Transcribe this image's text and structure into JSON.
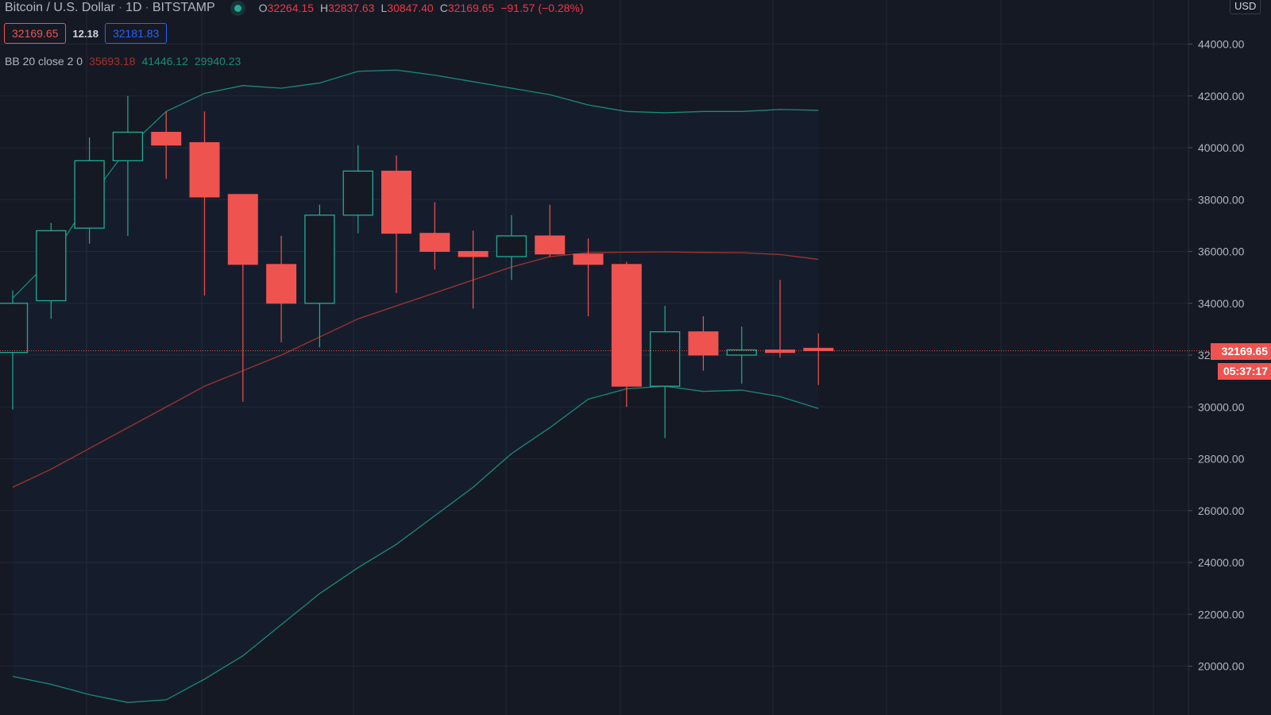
{
  "header": {
    "symbol": "Bitcoin / U.S. Dollar",
    "interval": "1D",
    "exchange": "BITSTAMP",
    "ohlc": {
      "o_label": "O",
      "o_value": "32264.15",
      "h_label": "H",
      "h_value": "32837.63",
      "l_label": "L",
      "l_value": "30847.40",
      "c_label": "C",
      "c_value": "32169.65",
      "change": "−91.57 (−0.28%)"
    }
  },
  "price_boxes": {
    "bid": "32169.65",
    "spread": "12.18",
    "ask": "32181.83"
  },
  "indicator": {
    "label": "BB 20 close 2 0",
    "basis": "35693.18",
    "upper": "41446.12",
    "lower": "29940.23"
  },
  "axis": {
    "currency_badge": "USD",
    "last_price": "32169.65",
    "countdown": "05:37:17"
  },
  "colors": {
    "background": "#151924",
    "up": "#22ab94",
    "down": "#ef5350",
    "basis": "#a0342f",
    "band": "#1b8a79",
    "grid": "#222633"
  },
  "chart_data": {
    "type": "candlestick",
    "ylim": [
      18000,
      45500
    ],
    "y_ticks": [
      "20000.00",
      "22000.00",
      "24000.00",
      "26000.00",
      "28000.00",
      "30000.00",
      "32000.00",
      "34000.00",
      "36000.00",
      "38000.00",
      "40000.00",
      "42000.00",
      "44000.00"
    ],
    "last_price": 32169.65,
    "candles": [
      {
        "o": 32100,
        "h": 34500,
        "l": 29900,
        "c": 34000
      },
      {
        "o": 34100,
        "h": 37100,
        "l": 33400,
        "c": 36800
      },
      {
        "o": 36900,
        "h": 40400,
        "l": 36300,
        "c": 39500
      },
      {
        "o": 39500,
        "h": 42000,
        "l": 36600,
        "c": 40600
      },
      {
        "o": 40600,
        "h": 41400,
        "l": 38800,
        "c": 40100
      },
      {
        "o": 40200,
        "h": 41400,
        "l": 34300,
        "c": 38100
      },
      {
        "o": 38200,
        "h": 38200,
        "l": 30200,
        "c": 35500
      },
      {
        "o": 35500,
        "h": 36600,
        "l": 32500,
        "c": 34000
      },
      {
        "o": 34000,
        "h": 37800,
        "l": 32300,
        "c": 37400
      },
      {
        "o": 37400,
        "h": 40100,
        "l": 36700,
        "c": 39100
      },
      {
        "o": 39100,
        "h": 39700,
        "l": 34400,
        "c": 36700
      },
      {
        "o": 36700,
        "h": 37900,
        "l": 35300,
        "c": 36000
      },
      {
        "o": 36000,
        "h": 36800,
        "l": 33800,
        "c": 35800
      },
      {
        "o": 35800,
        "h": 37400,
        "l": 34900,
        "c": 36600
      },
      {
        "o": 36600,
        "h": 37800,
        "l": 35800,
        "c": 35900
      },
      {
        "o": 35900,
        "h": 36500,
        "l": 33500,
        "c": 35500
      },
      {
        "o": 35500,
        "h": 35600,
        "l": 30000,
        "c": 30800
      },
      {
        "o": 30800,
        "h": 33900,
        "l": 28800,
        "c": 32900
      },
      {
        "o": 32900,
        "h": 33500,
        "l": 31400,
        "c": 32000
      },
      {
        "o": 32000,
        "h": 33100,
        "l": 30900,
        "c": 32200
      },
      {
        "o": 32200,
        "h": 34900,
        "l": 31900,
        "c": 32100
      },
      {
        "o": 32264.15,
        "h": 32837.63,
        "l": 30847.4,
        "c": 32169.65
      }
    ],
    "bollinger": {
      "upper": [
        34200,
        35700,
        38000,
        40000,
        41400,
        42100,
        42400,
        42300,
        42500,
        42950,
        43000,
        42800,
        42550,
        42300,
        42050,
        41650,
        41400,
        41350,
        41400,
        41400,
        41480,
        41446
      ],
      "basis": [
        26900,
        27600,
        28400,
        29200,
        30000,
        30800,
        31400,
        32000,
        32700,
        33400,
        33900,
        34400,
        34900,
        35400,
        35800,
        35950,
        35970,
        35980,
        35960,
        35950,
        35880,
        35693
      ],
      "lower": [
        19600,
        19300,
        18900,
        18600,
        18700,
        19500,
        20400,
        21600,
        22800,
        23800,
        24700,
        25800,
        26900,
        28200,
        29200,
        30300,
        30700,
        30800,
        30600,
        30650,
        30400,
        29940
      ]
    }
  }
}
